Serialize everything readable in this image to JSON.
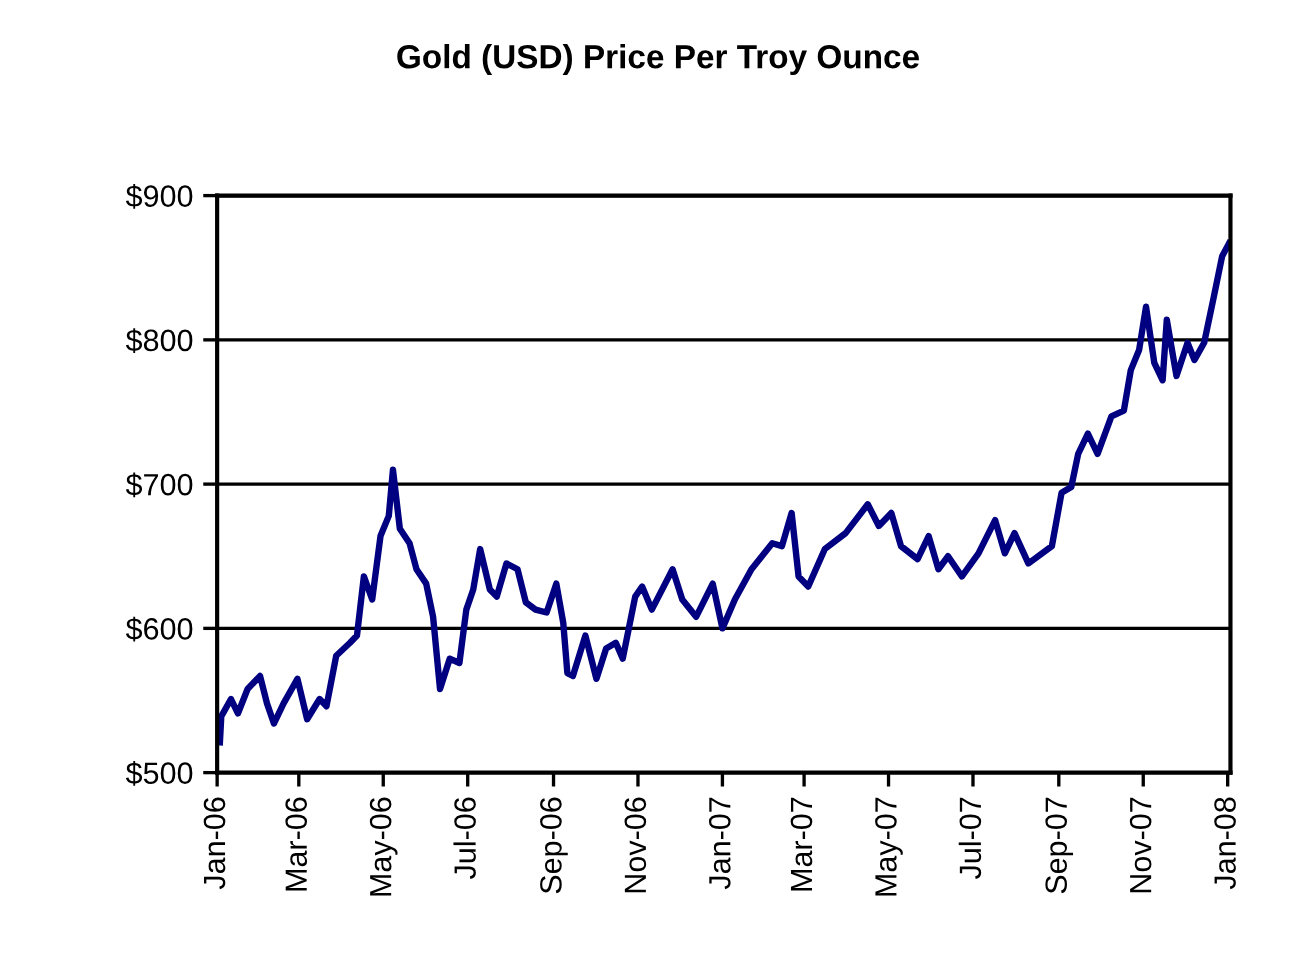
{
  "chart_data": {
    "type": "line",
    "title": "Gold (USD) Price Per Troy Ounce",
    "x": [
      "2006-01-03",
      "2006-01-04",
      "2006-01-11",
      "2006-01-16",
      "2006-01-23",
      "2006-02-01",
      "2006-02-06",
      "2006-02-11",
      "2006-02-18",
      "2006-02-28",
      "2006-03-07",
      "2006-03-16",
      "2006-03-21",
      "2006-03-28",
      "2006-04-07",
      "2006-04-12",
      "2006-04-17",
      "2006-04-23",
      "2006-04-29",
      "2006-05-05",
      "2006-05-08",
      "2006-05-13",
      "2006-05-20",
      "2006-05-25",
      "2006-06-01",
      "2006-06-06",
      "2006-06-11",
      "2006-06-18",
      "2006-06-25",
      "2006-06-30",
      "2006-07-05",
      "2006-07-10",
      "2006-07-17",
      "2006-07-22",
      "2006-07-29",
      "2006-08-06",
      "2006-08-12",
      "2006-08-19",
      "2006-08-27",
      "2006-09-03",
      "2006-09-08",
      "2006-09-11",
      "2006-09-15",
      "2006-09-24",
      "2006-10-02",
      "2006-10-09",
      "2006-10-16",
      "2006-10-21",
      "2006-10-30",
      "2006-11-04",
      "2006-11-11",
      "2006-11-26",
      "2006-12-03",
      "2006-12-13",
      "2006-12-25",
      "2007-01-01",
      "2007-01-10",
      "2007-01-22",
      "2007-02-06",
      "2007-02-13",
      "2007-02-20",
      "2007-02-25",
      "2007-03-04",
      "2007-03-16",
      "2007-03-31",
      "2007-04-16",
      "2007-04-24",
      "2007-05-03",
      "2007-05-10",
      "2007-05-22",
      "2007-05-30",
      "2007-06-06",
      "2007-06-13",
      "2007-06-23",
      "2007-07-05",
      "2007-07-17",
      "2007-07-24",
      "2007-07-31",
      "2007-08-10",
      "2007-08-27",
      "2007-09-03",
      "2007-09-10",
      "2007-09-15",
      "2007-09-22",
      "2007-09-29",
      "2007-10-09",
      "2007-10-18",
      "2007-10-23",
      "2007-10-29",
      "2007-11-03",
      "2007-11-09",
      "2007-11-15",
      "2007-11-18",
      "2007-11-25",
      "2007-12-03",
      "2007-12-08",
      "2007-12-15",
      "2007-12-22",
      "2007-12-28",
      "2008-01-02"
    ],
    "series": [
      {
        "color": "#000080",
        "values": [
          521,
          539,
          551,
          541,
          558,
          567,
          548,
          534,
          548,
          565,
          537,
          551,
          546,
          581,
          590,
          595,
          636,
          620,
          664,
          678,
          710,
          669,
          659,
          641,
          631,
          608,
          558,
          579,
          576,
          613,
          627,
          655,
          627,
          622,
          645,
          641,
          618,
          613,
          611,
          631,
          604,
          569,
          567,
          595,
          565,
          586,
          590,
          579,
          622,
          629,
          613,
          641,
          620,
          608,
          631,
          600,
          620,
          641,
          659,
          657,
          680,
          636,
          629,
          655,
          666,
          686,
          671,
          680,
          657,
          648,
          664,
          641,
          650,
          636,
          652,
          675,
          652,
          666,
          645,
          657,
          694,
          698,
          721,
          735,
          721,
          747,
          751,
          779,
          793,
          823,
          784,
          772,
          814,
          775,
          798,
          786,
          798,
          830,
          858,
          867
        ]
      }
    ],
    "xlim": [
      "2006-01-01",
      "2008-01-03"
    ],
    "xticks": [
      {
        "value": "2006-01-01",
        "label": "Jan-06"
      },
      {
        "value": "2006-03-01",
        "label": "Mar-06"
      },
      {
        "value": "2006-05-01",
        "label": "May-06"
      },
      {
        "value": "2006-07-01",
        "label": "Jul-06"
      },
      {
        "value": "2006-09-01",
        "label": "Sep-06"
      },
      {
        "value": "2006-11-01",
        "label": "Nov-06"
      },
      {
        "value": "2007-01-01",
        "label": "Jan-07"
      },
      {
        "value": "2007-03-01",
        "label": "Mar-07"
      },
      {
        "value": "2007-05-01",
        "label": "May-07"
      },
      {
        "value": "2007-07-01",
        "label": "Jul-07"
      },
      {
        "value": "2007-09-01",
        "label": "Sep-07"
      },
      {
        "value": "2007-11-01",
        "label": "Nov-07"
      },
      {
        "value": "2008-01-01",
        "label": "Jan-08"
      }
    ],
    "ylim": [
      500,
      900
    ],
    "yticks": [
      {
        "value": 500,
        "label": "$500"
      },
      {
        "value": 600,
        "label": "$600"
      },
      {
        "value": 700,
        "label": "$700"
      },
      {
        "value": 800,
        "label": "$800"
      },
      {
        "value": 900,
        "label": "$900"
      }
    ],
    "grid": "y",
    "marker": "none",
    "line_style": "solid"
  }
}
